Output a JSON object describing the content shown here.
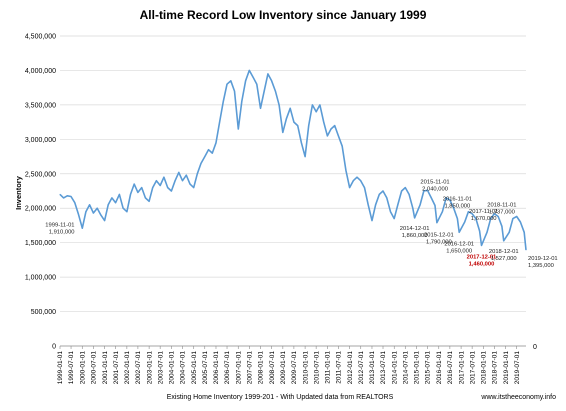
{
  "chart_data": {
    "type": "line",
    "title": "All-time Record Low Inventory since January 1999",
    "xlabel": "Existing Home Inventory 1999-201 - With Updated data from REALTORS",
    "ylabel": "Inventory",
    "credit": "www.itstheeconomy.info",
    "secondary_axis_label": "0",
    "ylim": [
      0,
      4500000
    ],
    "y_ticks": [
      "0",
      "500,000",
      "1,000,000",
      "1,500,000",
      "2,000,000",
      "2,500,000",
      "3,000,000",
      "3,500,000",
      "4,000,000",
      "4,500,000"
    ],
    "x_ticks": [
      "1999-01-01",
      "1999-07-01",
      "2000-01-01",
      "2000-07-01",
      "2001-01-01",
      "2001-07-01",
      "2002-01-01",
      "2002-07-01",
      "2003-01-01",
      "2003-07-01",
      "2004-01-01",
      "2004-07-01",
      "2005-01-01",
      "2005-07-01",
      "2006-01-01",
      "2006-07-01",
      "2007-01-01",
      "2007-07-01",
      "2008-01-01",
      "2008-07-01",
      "2009-01-01",
      "2009-07-01",
      "2010-01-01",
      "2010-07-01",
      "2011-01-01",
      "2011-07-01",
      "2012-01-01",
      "2012-07-01",
      "2013-01-01",
      "2013-07-01",
      "2014-01-01",
      "2014-07-01",
      "2015-01-01",
      "2015-07-01",
      "2016-01-01",
      "2016-07-01",
      "2017-01-01",
      "2017-07-01",
      "2018-01-01",
      "2018-07-01",
      "2019-01-01",
      "2019-07-01"
    ],
    "grid": true,
    "line_color": "#5b9bd5",
    "series": [
      {
        "values": [
          [
            "1999-01-01",
            2200000
          ],
          [
            "1999-03-01",
            2150000
          ],
          [
            "1999-05-01",
            2180000
          ],
          [
            "1999-07-01",
            2170000
          ],
          [
            "1999-09-01",
            2080000
          ],
          [
            "1999-11-01",
            1910000
          ],
          [
            "2000-01-01",
            1710000
          ],
          [
            "2000-03-01",
            1950000
          ],
          [
            "2000-05-01",
            2050000
          ],
          [
            "2000-07-01",
            1930000
          ],
          [
            "2000-09-01",
            2000000
          ],
          [
            "2000-11-01",
            1900000
          ],
          [
            "2001-01-01",
            1820000
          ],
          [
            "2001-03-01",
            2050000
          ],
          [
            "2001-05-01",
            2150000
          ],
          [
            "2001-07-01",
            2080000
          ],
          [
            "2001-09-01",
            2200000
          ],
          [
            "2001-11-01",
            2000000
          ],
          [
            "2002-01-01",
            1950000
          ],
          [
            "2002-03-01",
            2200000
          ],
          [
            "2002-05-01",
            2350000
          ],
          [
            "2002-07-01",
            2230000
          ],
          [
            "2002-09-01",
            2300000
          ],
          [
            "2002-11-01",
            2150000
          ],
          [
            "2003-01-01",
            2100000
          ],
          [
            "2003-03-01",
            2300000
          ],
          [
            "2003-05-01",
            2400000
          ],
          [
            "2003-07-01",
            2330000
          ],
          [
            "2003-09-01",
            2450000
          ],
          [
            "2003-11-01",
            2300000
          ],
          [
            "2004-01-01",
            2250000
          ],
          [
            "2004-03-01",
            2400000
          ],
          [
            "2004-05-01",
            2520000
          ],
          [
            "2004-07-01",
            2400000
          ],
          [
            "2004-09-01",
            2480000
          ],
          [
            "2004-11-01",
            2350000
          ],
          [
            "2005-01-01",
            2300000
          ],
          [
            "2005-03-01",
            2500000
          ],
          [
            "2005-05-01",
            2650000
          ],
          [
            "2005-07-01",
            2750000
          ],
          [
            "2005-09-01",
            2850000
          ],
          [
            "2005-11-01",
            2800000
          ],
          [
            "2006-01-01",
            2950000
          ],
          [
            "2006-03-01",
            3250000
          ],
          [
            "2006-05-01",
            3550000
          ],
          [
            "2006-07-01",
            3800000
          ],
          [
            "2006-09-01",
            3850000
          ],
          [
            "2006-11-01",
            3700000
          ],
          [
            "2007-01-01",
            3150000
          ],
          [
            "2007-03-01",
            3550000
          ],
          [
            "2007-05-01",
            3850000
          ],
          [
            "2007-07-01",
            4000000
          ],
          [
            "2007-09-01",
            3900000
          ],
          [
            "2007-11-01",
            3800000
          ],
          [
            "2008-01-01",
            3450000
          ],
          [
            "2008-03-01",
            3700000
          ],
          [
            "2008-05-01",
            3950000
          ],
          [
            "2008-07-01",
            3850000
          ],
          [
            "2008-09-01",
            3700000
          ],
          [
            "2008-11-01",
            3500000
          ],
          [
            "2009-01-01",
            3100000
          ],
          [
            "2009-03-01",
            3300000
          ],
          [
            "2009-05-01",
            3450000
          ],
          [
            "2009-07-01",
            3250000
          ],
          [
            "2009-09-01",
            3200000
          ],
          [
            "2009-11-01",
            2950000
          ],
          [
            "2010-01-01",
            2750000
          ],
          [
            "2010-03-01",
            3200000
          ],
          [
            "2010-05-01",
            3500000
          ],
          [
            "2010-07-01",
            3400000
          ],
          [
            "2010-09-01",
            3500000
          ],
          [
            "2010-11-01",
            3250000
          ],
          [
            "2011-01-01",
            3050000
          ],
          [
            "2011-03-01",
            3150000
          ],
          [
            "2011-05-01",
            3200000
          ],
          [
            "2011-07-01",
            3050000
          ],
          [
            "2011-09-01",
            2900000
          ],
          [
            "2011-11-01",
            2550000
          ],
          [
            "2012-01-01",
            2300000
          ],
          [
            "2012-03-01",
            2400000
          ],
          [
            "2012-05-01",
            2450000
          ],
          [
            "2012-07-01",
            2400000
          ],
          [
            "2012-09-01",
            2300000
          ],
          [
            "2012-11-01",
            2050000
          ],
          [
            "2013-01-01",
            1820000
          ],
          [
            "2013-03-01",
            2050000
          ],
          [
            "2013-05-01",
            2200000
          ],
          [
            "2013-07-01",
            2250000
          ],
          [
            "2013-09-01",
            2150000
          ],
          [
            "2013-11-01",
            1950000
          ],
          [
            "2014-01-01",
            1850000
          ],
          [
            "2014-03-01",
            2050000
          ],
          [
            "2014-05-01",
            2250000
          ],
          [
            "2014-07-01",
            2300000
          ],
          [
            "2014-09-01",
            2200000
          ],
          [
            "2014-11-01",
            2000000
          ],
          [
            "2014-12-01",
            1860000
          ],
          [
            "2015-03-01",
            2050000
          ],
          [
            "2015-05-01",
            2250000
          ],
          [
            "2015-07-01",
            2260000
          ],
          [
            "2015-09-01",
            2150000
          ],
          [
            "2015-11-01",
            2040000
          ],
          [
            "2015-12-01",
            1790000
          ],
          [
            "2016-03-01",
            1950000
          ],
          [
            "2016-05-01",
            2150000
          ],
          [
            "2016-07-01",
            2120000
          ],
          [
            "2016-09-01",
            2000000
          ],
          [
            "2016-11-01",
            1850000
          ],
          [
            "2016-12-01",
            1650000
          ],
          [
            "2017-03-01",
            1800000
          ],
          [
            "2017-05-01",
            1950000
          ],
          [
            "2017-07-01",
            1920000
          ],
          [
            "2017-09-01",
            1850000
          ],
          [
            "2017-11-01",
            1670000
          ],
          [
            "2017-12-01",
            1460000
          ],
          [
            "2018-03-01",
            1650000
          ],
          [
            "2018-05-01",
            1850000
          ],
          [
            "2018-07-01",
            1920000
          ],
          [
            "2018-09-01",
            1880000
          ],
          [
            "2018-11-01",
            1737000
          ],
          [
            "2018-12-01",
            1527000
          ],
          [
            "2019-03-01",
            1650000
          ],
          [
            "2019-05-01",
            1850000
          ],
          [
            "2019-07-01",
            1880000
          ],
          [
            "2019-09-01",
            1800000
          ],
          [
            "2019-11-01",
            1650000
          ],
          [
            "2019-12-01",
            1395000
          ]
        ]
      }
    ],
    "annotations": [
      {
        "date": "1999-11-01",
        "value_label": "1,910,000",
        "color": "dark"
      },
      {
        "date": "1999-12-01",
        "value_label": "1,710,000",
        "color": "red"
      },
      {
        "date": "2014-12-01",
        "value_label": "1,860,000",
        "color": "dark"
      },
      {
        "date": "2015-11-01",
        "value_label": "2,040,000",
        "color": "dark"
      },
      {
        "date": "2015-12-01",
        "value_label": "1,790,000",
        "color": "dark"
      },
      {
        "date": "2016-11-01",
        "value_label": "1,850,000",
        "color": "dark"
      },
      {
        "date": "2016-12-01",
        "value_label": "1,650,000",
        "color": "dark"
      },
      {
        "date": "2017-11-01",
        "value_label": "1,670,000",
        "color": "dark"
      },
      {
        "date": "2017-12-01",
        "value_label": "1,460,000",
        "color": "red"
      },
      {
        "date": "2018-11-01",
        "value_label": "1,737,000",
        "color": "dark"
      },
      {
        "date": "2018-12-01",
        "value_label": "1,527,000",
        "color": "dark"
      },
      {
        "date": "2019-12-01",
        "value_label": "1,395,000",
        "color": "dark"
      }
    ]
  }
}
